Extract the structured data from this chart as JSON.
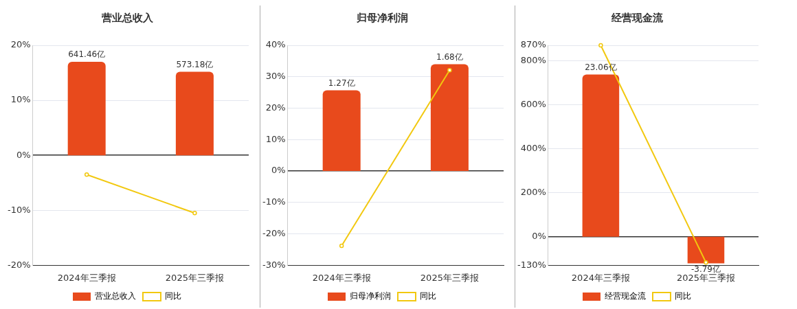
{
  "chart_data": [
    {
      "type": "bar",
      "title": "营业总收入",
      "categories": [
        "2024年三季报",
        "2025年三季报"
      ],
      "series": [
        {
          "name": "营业总收入",
          "color": "#e84a1c",
          "values": [
            641.46,
            573.18
          ],
          "value_labels": [
            "641.46亿",
            "573.18亿"
          ],
          "axis": "y2"
        },
        {
          "name": "同比",
          "type": "line",
          "color": "#f2c80f",
          "values": [
            -3.5,
            -10.5
          ],
          "marker": "circle"
        }
      ],
      "ylim": [
        -20,
        20
      ],
      "yticks": [
        {
          "value": -20,
          "label": "-20%"
        },
        {
          "value": -10,
          "label": "-10%"
        },
        {
          "value": 0,
          "label": "0%"
        },
        {
          "value": 10,
          "label": "10%"
        },
        {
          "value": 20,
          "label": "20%"
        }
      ],
      "y2lim": [
        -754.7,
        754.7
      ],
      "grid": "y",
      "legend": "bottom"
    },
    {
      "type": "bar",
      "title": "归母净利润",
      "categories": [
        "2024年三季报",
        "2025年三季报"
      ],
      "series": [
        {
          "name": "归母净利润",
          "color": "#e84a1c",
          "values": [
            1.27,
            1.68
          ],
          "value_labels": [
            "1.27亿",
            "1.68亿"
          ],
          "axis": "y2"
        },
        {
          "name": "同比",
          "type": "line",
          "color": "#f2c80f",
          "values": [
            -23.8,
            32.1
          ],
          "marker": "circle"
        }
      ],
      "ylim": [
        -30,
        40
      ],
      "yticks": [
        {
          "value": -30,
          "label": "-30%"
        },
        {
          "value": -20,
          "label": "-20%"
        },
        {
          "value": -10,
          "label": "-10%"
        },
        {
          "value": 0,
          "label": "0%"
        },
        {
          "value": 10,
          "label": "10%"
        },
        {
          "value": 20,
          "label": "20%"
        },
        {
          "value": 30,
          "label": "30%"
        },
        {
          "value": 40,
          "label": "40%"
        }
      ],
      "y2lim": [
        -1.482,
        1.976
      ],
      "grid": "y",
      "legend": "bottom"
    },
    {
      "type": "bar",
      "title": "经营现金流",
      "categories": [
        "2024年三季报",
        "2025年三季报"
      ],
      "series": [
        {
          "name": "经营现金流",
          "color": "#e84a1c",
          "values": [
            23.06,
            -3.79
          ],
          "value_labels": [
            "23.06亿",
            "-3.79亿"
          ],
          "axis": "y2"
        },
        {
          "name": "同比",
          "type": "line",
          "color": "#f2c80f",
          "values": [
            870,
            -117
          ],
          "marker": "circle"
        }
      ],
      "ylim": [
        -130,
        870
      ],
      "yticks": [
        {
          "value": -130,
          "label": "-130%"
        },
        {
          "value": 0,
          "label": "0%"
        },
        {
          "value": 200,
          "label": "200%"
        },
        {
          "value": 400,
          "label": "400%"
        },
        {
          "value": 600,
          "label": "600%"
        },
        {
          "value": 800,
          "label": "800%"
        },
        {
          "value": 870,
          "label": "870%"
        }
      ],
      "y2lim": [
        -4.07,
        27.22
      ],
      "grid": "y",
      "legend": "bottom"
    }
  ]
}
